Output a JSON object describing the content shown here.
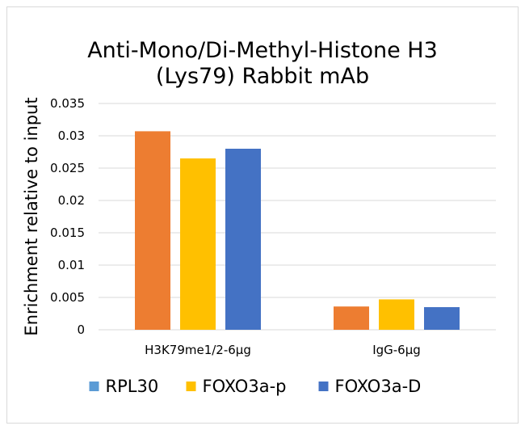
{
  "chart_data": {
    "type": "bar",
    "title_lines": [
      "Anti-Mono/Di-Methyl-Histone H3",
      "(Lys79) Rabbit mAb"
    ],
    "xlabel": "",
    "ylabel": "Enrichment relative to input",
    "categories": [
      "H3K79me1/2-6μg",
      "IgG-6μg"
    ],
    "series": [
      {
        "name": "RPL30",
        "values": [
          0.0307,
          0.0036
        ],
        "bar_color": "#ed7d31",
        "legend_color": "#5b9bd5"
      },
      {
        "name": "FOXO3a-p",
        "values": [
          0.0265,
          0.0047
        ],
        "bar_color": "#ffc000",
        "legend_color": "#ffc000"
      },
      {
        "name": "FOXO3a-D",
        "values": [
          0.028,
          0.0035
        ],
        "bar_color": "#4472c4",
        "legend_color": "#4472c4"
      }
    ],
    "ylim": [
      0,
      0.035
    ],
    "yticks": [
      "0",
      "0.005",
      "0.01",
      "0.015",
      "0.02",
      "0.025",
      "0.03",
      "0.035"
    ],
    "grid": true,
    "legend_position": "bottom"
  }
}
